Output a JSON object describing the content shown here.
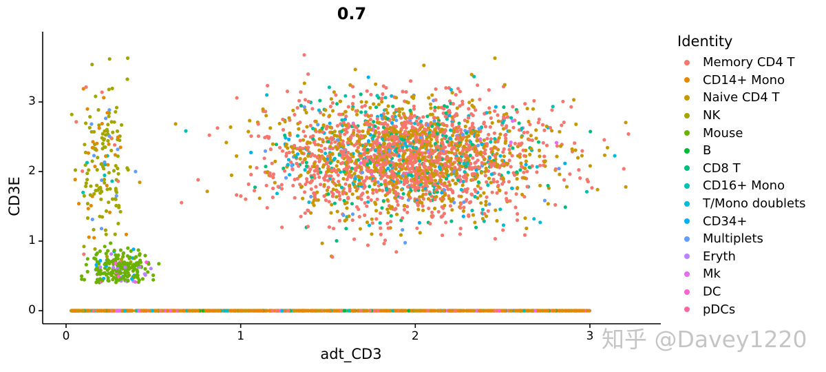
{
  "chart_data": {
    "type": "scatter",
    "title": "0.7",
    "xlabel": "adt_CD3",
    "ylabel": "CD3E",
    "xlim": [
      -0.13,
      3.4
    ],
    "ylim": [
      -0.2,
      4.0
    ],
    "x_ticks": [
      "0",
      "1",
      "2",
      "3"
    ],
    "y_ticks": [
      "0",
      "1",
      "2",
      "3"
    ],
    "grid": false,
    "legend_position": "right",
    "legend_title": "Identity",
    "series": [
      {
        "name": "Memory CD4 T",
        "color": "#F8766D"
      },
      {
        "name": "CD14+ Mono",
        "color": "#E58700"
      },
      {
        "name": "Naive CD4 T",
        "color": "#C99800"
      },
      {
        "name": "NK",
        "color": "#A3A500"
      },
      {
        "name": "Mouse",
        "color": "#6BB100"
      },
      {
        "name": "B",
        "color": "#00BA38"
      },
      {
        "name": "CD8 T",
        "color": "#00BF7D"
      },
      {
        "name": "CD16+ Mono",
        "color": "#00C0AF"
      },
      {
        "name": "T/Mono doublets",
        "color": "#00BCD8"
      },
      {
        "name": "CD34+",
        "color": "#00B0F6"
      },
      {
        "name": "Multiplets",
        "color": "#619CFF"
      },
      {
        "name": "Eryth",
        "color": "#B983FF"
      },
      {
        "name": "Mk",
        "color": "#E76BF3"
      },
      {
        "name": "DC",
        "color": "#FD61D1"
      },
      {
        "name": "pDCs",
        "color": "#FF67A4"
      }
    ],
    "clusters": [
      {
        "description": "main T-cell cloud",
        "x_center": 1.95,
        "x_sd": 0.38,
        "y_center": 2.2,
        "y_sd": 0.42,
        "n": 2600,
        "mix": {
          "Memory CD4 T": 0.48,
          "Naive CD4 T": 0.34,
          "CD8 T": 0.07,
          "CD16+ Mono": 0.03,
          "T/Mono doublets": 0.03,
          "CD34+": 0.02,
          "Multiplets": 0.02,
          "Mk": 0.01
        }
      },
      {
        "description": "NK band low x",
        "x_center": 0.2,
        "x_sd": 0.08,
        "y_center": 2.1,
        "y_sd": 0.55,
        "n": 170,
        "mix": {
          "NK": 0.7,
          "CD14+ Mono": 0.15,
          "CD16+ Mono": 0.05,
          "Memory CD4 T": 0.05,
          "Multiplets": 0.05
        }
      },
      {
        "description": "mouse cluster",
        "x_center": 0.3,
        "x_sd": 0.09,
        "y_center": 0.6,
        "y_sd": 0.15,
        "n": 220,
        "mix": {
          "Mouse": 0.88,
          "Eryth": 0.05,
          "CD34+": 0.04,
          "DC": 0.03
        }
      },
      {
        "description": "zero-expression line",
        "x_range": [
          0.03,
          3.0
        ],
        "y": 0,
        "n": 1400,
        "mix": {
          "CD14+ Mono": 0.6,
          "Naive CD4 T": 0.12,
          "Memory CD4 T": 0.08,
          "CD16+ Mono": 0.06,
          "T/Mono doublets": 0.05,
          "B": 0.04,
          "Mk": 0.03,
          "DC": 0.02
        }
      }
    ]
  },
  "watermark": "知乎 @Davey1220"
}
